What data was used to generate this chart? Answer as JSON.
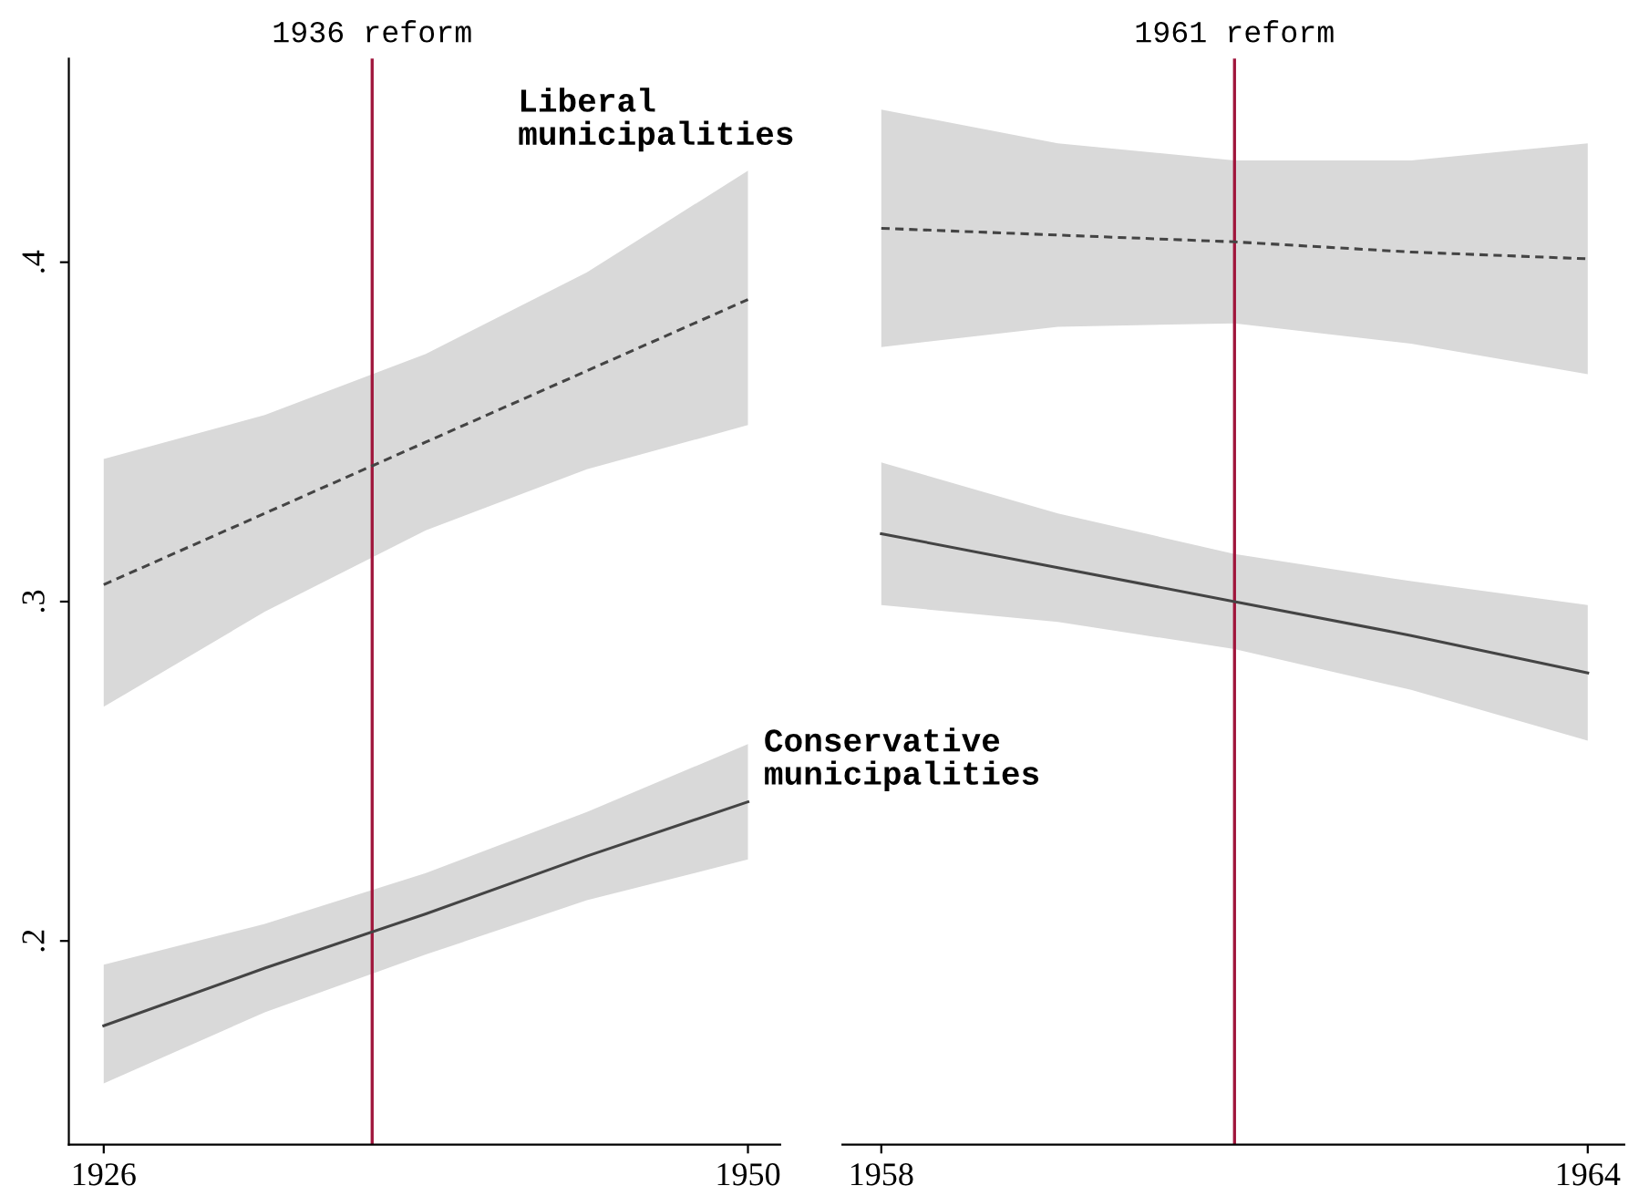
{
  "chart_data": [
    {
      "type": "line",
      "xlim": [
        1924.7,
        1951.2
      ],
      "xticks": [
        1926,
        1950
      ],
      "ylim": [
        0.14,
        0.46
      ],
      "yticks": [
        {
          "value": 0.2,
          "label": ".2"
        },
        {
          "value": 0.3,
          "label": ".3"
        },
        {
          "value": 0.4,
          "label": ".4"
        }
      ],
      "grid": false,
      "marker": "none",
      "series": [
        {
          "color": "#444444",
          "line_style": "solid",
          "x": [
            1926,
            1932,
            1938,
            1944,
            1950
          ],
          "values": [
            0.175,
            0.192,
            0.208,
            0.225,
            0.241
          ],
          "lower": [
            0.158,
            0.179,
            0.196,
            0.212,
            0.224
          ],
          "upper": [
            0.193,
            0.205,
            0.22,
            0.238,
            0.258
          ]
        },
        {
          "color": "#444444",
          "line_style": "dashed",
          "x": [
            1926,
            1932,
            1938,
            1944,
            1950
          ],
          "values": [
            0.305,
            0.326,
            0.347,
            0.368,
            0.389
          ],
          "lower": [
            0.269,
            0.297,
            0.321,
            0.339,
            0.352
          ],
          "upper": [
            0.342,
            0.355,
            0.373,
            0.397,
            0.427
          ]
        }
      ],
      "ref_lines": [
        {
          "axis": "x",
          "value": 1936,
          "label": "1936 reform",
          "color": "#a0163c"
        }
      ],
      "annotations": [
        "Liberal\nmunicipalities",
        "Conservative\nmunicipalities"
      ]
    },
    {
      "type": "line",
      "xlim": [
        1957.67,
        1964.31
      ],
      "xticks": [
        1958,
        1964
      ],
      "ylim": [
        0.14,
        0.46
      ],
      "tick_labels": "x",
      "grid": false,
      "marker": "none",
      "series": [
        {
          "color": "#444444",
          "line_style": "solid",
          "x": [
            1958,
            1959.5,
            1961,
            1962.5,
            1964
          ],
          "values": [
            0.32,
            0.31,
            0.3,
            0.29,
            0.279
          ],
          "lower": [
            0.299,
            0.294,
            0.286,
            0.274,
            0.259
          ],
          "upper": [
            0.341,
            0.326,
            0.314,
            0.306,
            0.299
          ]
        },
        {
          "color": "#444444",
          "line_style": "dashed",
          "x": [
            1958,
            1959.5,
            1961,
            1962.5,
            1964
          ],
          "values": [
            0.41,
            0.408,
            0.406,
            0.403,
            0.401
          ],
          "lower": [
            0.375,
            0.381,
            0.382,
            0.376,
            0.367
          ],
          "upper": [
            0.445,
            0.435,
            0.43,
            0.43,
            0.435
          ]
        }
      ],
      "ref_lines": [
        {
          "axis": "x",
          "value": 1961,
          "label": "1961 reform",
          "color": "#a0163c"
        }
      ]
    }
  ]
}
